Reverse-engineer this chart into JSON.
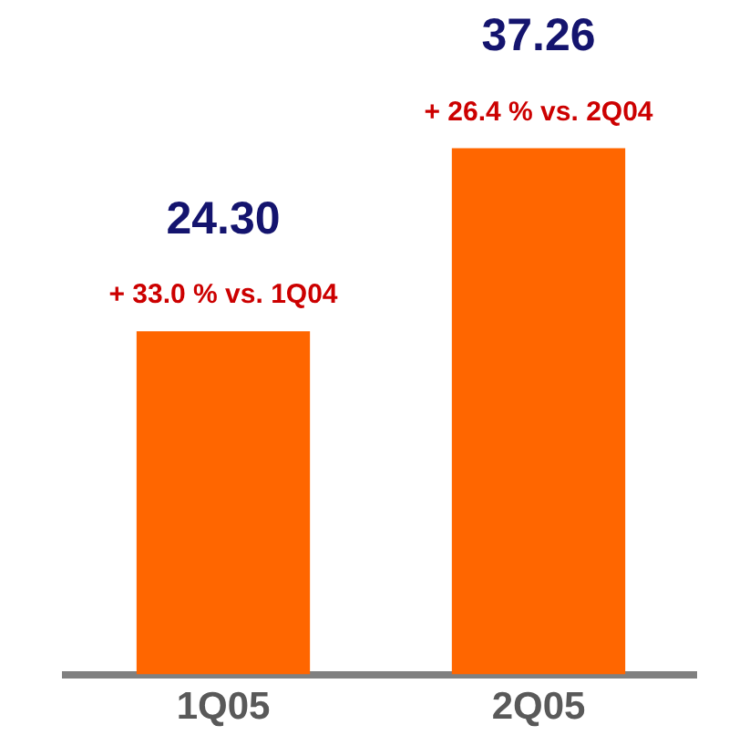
{
  "chart_data": {
    "type": "bar",
    "categories": [
      "1Q05",
      "2Q05"
    ],
    "values": [
      24.3,
      37.26
    ],
    "value_labels": [
      "24.30",
      "37.26"
    ],
    "color": "#ff6600",
    "grid": false,
    "legend": false,
    "tick_labels": "x",
    "annotations": [
      {
        "text": "+ 33.0 % vs. 1Q04",
        "x": "1Q05",
        "y": 24.3
      },
      {
        "text": "+ 26.4 % vs. 2Q04",
        "x": "2Q05",
        "y": 37.26
      }
    ]
  }
}
